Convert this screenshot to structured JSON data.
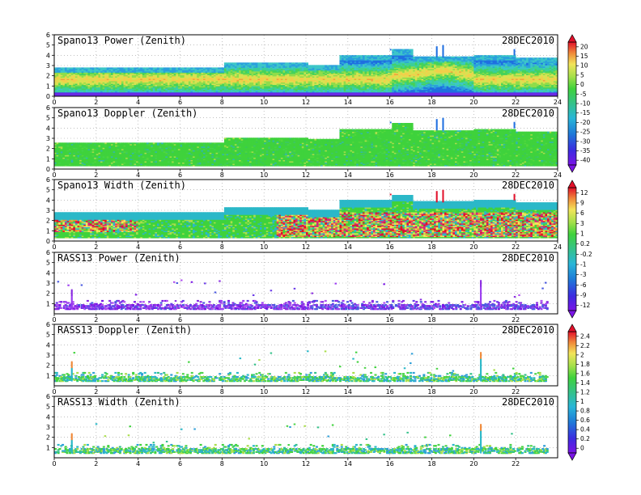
{
  "chart_data": [
    {
      "type": "heatmap",
      "title": "Spano13 Power (Zenith)",
      "date": "28DEC2010",
      "xlim": [
        0,
        24
      ],
      "ylim": [
        0,
        6
      ],
      "xticks": [
        "0",
        "2",
        "4",
        "6",
        "8",
        "10",
        "12",
        "14",
        "16",
        "18",
        "20",
        "22",
        "24"
      ],
      "yticks": [
        "0",
        "1",
        "2",
        "3",
        "4",
        "5",
        "6"
      ],
      "colorbar": {
        "ticks": [
          "-40",
          "-35",
          "-30",
          "-25",
          "-20",
          "-15",
          "-10",
          "-5",
          "0",
          "5",
          "10",
          "15",
          "20"
        ]
      },
      "coverage": [
        [
          0,
          8,
          2.8
        ],
        [
          8,
          12,
          3.2
        ],
        [
          12,
          13.5,
          3.0
        ],
        [
          13.5,
          16,
          4.0
        ],
        [
          16,
          17,
          4.5
        ],
        [
          17,
          20,
          3.8
        ],
        [
          20,
          22,
          4.0
        ],
        [
          22,
          24,
          3.7
        ]
      ]
    },
    {
      "type": "heatmap",
      "title": "Spano13 Doppler (Zenith)",
      "date": "28DEC2010",
      "xlim": [
        0,
        24
      ],
      "ylim": [
        0,
        6
      ],
      "xticks": [
        "0",
        "2",
        "4",
        "6",
        "8",
        "10",
        "12",
        "14",
        "16",
        "18",
        "20",
        "22",
        "24"
      ],
      "yticks": [
        "0",
        "1",
        "2",
        "3",
        "4",
        "5",
        "6"
      ],
      "colorbar": null,
      "coverage": [
        [
          0,
          8,
          2.6
        ],
        [
          8,
          12,
          3.1
        ],
        [
          12,
          13.5,
          3.0
        ],
        [
          13.5,
          16,
          3.9
        ],
        [
          16,
          17,
          4.5
        ],
        [
          17,
          20,
          3.8
        ],
        [
          20,
          22,
          4.0
        ],
        [
          22,
          24,
          3.7
        ]
      ]
    },
    {
      "type": "heatmap",
      "title": "Spano13 Width (Zenith)",
      "date": "28DEC2010",
      "xlim": [
        0,
        24
      ],
      "ylim": [
        0,
        6
      ],
      "xticks": [
        "0",
        "2",
        "4",
        "6",
        "8",
        "10",
        "12",
        "14",
        "16",
        "18",
        "20",
        "22",
        "24"
      ],
      "yticks": [
        "0",
        "1",
        "2",
        "3",
        "4",
        "5",
        "6"
      ],
      "colorbar": {
        "ticks": [
          "-12",
          "-9",
          "-6",
          "-3",
          "-1",
          "-0.2",
          "0.2",
          "1",
          "3",
          "6",
          "9",
          "12"
        ]
      },
      "coverage": [
        [
          0,
          8,
          2.8
        ],
        [
          8,
          12,
          3.2
        ],
        [
          12,
          13.5,
          3.0
        ],
        [
          13.5,
          16,
          4.0
        ],
        [
          16,
          17,
          4.5
        ],
        [
          17,
          20,
          3.8
        ],
        [
          20,
          22,
          4.0
        ],
        [
          22,
          24,
          3.7
        ]
      ]
    },
    {
      "type": "heatmap",
      "title": "RASS13 Power (Zenith)",
      "date": "28DEC2010",
      "xlim": [
        0,
        24
      ],
      "ylim": [
        0,
        6
      ],
      "xticks": [
        "0",
        "2",
        "4",
        "6",
        "8",
        "10",
        "12",
        "14",
        "16",
        "18",
        "20",
        "22"
      ],
      "yticks": [
        "1",
        "2",
        "3",
        "4",
        "5",
        "6"
      ],
      "colorbar": null
    },
    {
      "type": "heatmap",
      "title": "RASS13 Doppler (Zenith)",
      "date": "28DEC2010",
      "xlim": [
        0,
        24
      ],
      "ylim": [
        0,
        6
      ],
      "xticks": [
        "0",
        "2",
        "4",
        "6",
        "8",
        "10",
        "12",
        "14",
        "16",
        "18",
        "20",
        "22"
      ],
      "yticks": [
        "1",
        "2",
        "3",
        "4",
        "5",
        "6"
      ],
      "colorbar": {
        "ticks": [
          "0",
          "0.2",
          "0.4",
          "0.6",
          "0.8",
          "1",
          "1.2",
          "1.4",
          "1.6",
          "1.8",
          "2",
          "2.2",
          "2.4"
        ]
      }
    },
    {
      "type": "heatmap",
      "title": "RASS13 Width (Zenith)",
      "date": "28DEC2010",
      "xlim": [
        0,
        24
      ],
      "ylim": [
        0,
        6
      ],
      "xticks": [
        "0",
        "2",
        "4",
        "6",
        "8",
        "10",
        "12",
        "14",
        "16",
        "18",
        "20",
        "22"
      ],
      "yticks": [
        "1",
        "2",
        "3",
        "4",
        "5",
        "6"
      ],
      "colorbar": null
    }
  ]
}
